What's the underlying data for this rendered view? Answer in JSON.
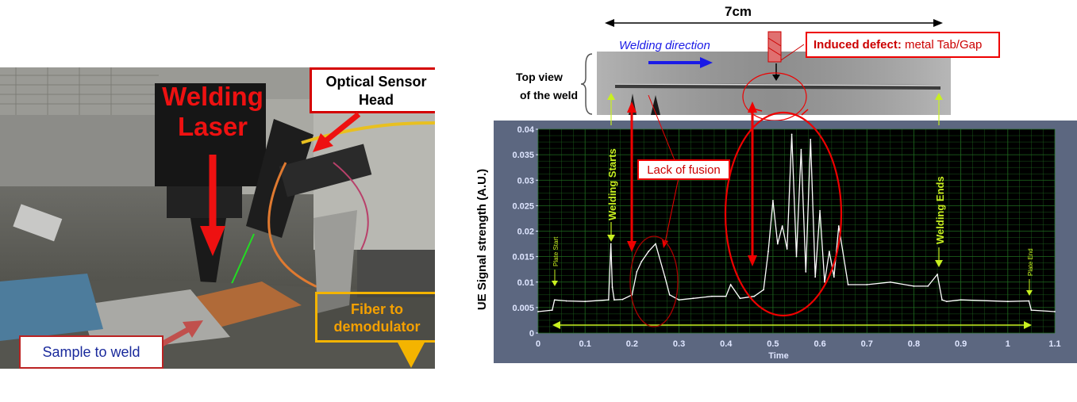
{
  "photo": {
    "welding_laser_label": "Welding Laser",
    "optical_sensor_label": "Optical Sensor Head",
    "fiber_label": "Fiber to demodulator",
    "sample_label": "Sample to weld"
  },
  "weld_view": {
    "width_label": "7cm",
    "direction_label": "Welding direction",
    "defect_label_bold": "Induced defect:",
    "defect_label_rest": "metal Tab/Gap",
    "top_view_label_line1": "Top view",
    "top_view_label_line2": "of the weld"
  },
  "annotations": {
    "lack_of_fusion": "Lack of fusion",
    "welding_starts": "Welding Starts",
    "welding_ends": "Welding Ends",
    "plate_start": "Plate Start",
    "plate_end": "Plate End"
  },
  "colors": {
    "plot_background": "#000000",
    "grid": "#1f6b1f",
    "frame": "#5c6780",
    "signal": "#ffffff",
    "annotation_red": "#e00000",
    "annotation_green": "#c8f020",
    "direction_arrow": "#1a1ae6"
  },
  "chart_data": {
    "type": "line",
    "xlabel": "Time",
    "ylabel": "UE Signal strength (A.U.)",
    "xlim": [
      0,
      1.1
    ],
    "ylim": [
      0,
      0.04
    ],
    "x_ticks": [
      "0",
      "0.1",
      "0.2",
      "0.3",
      "0.4",
      "0.5",
      "0.6",
      "0.7",
      "0.8",
      "0.9",
      "1",
      "1.1"
    ],
    "y_ticks": [
      "0",
      "0.005",
      "0.01",
      "0.015",
      "0.02",
      "0.025",
      "0.03",
      "0.035",
      "0.04"
    ],
    "grid": true,
    "series": [
      {
        "x": [
          0,
          0.03,
          0.035,
          0.06,
          0.1,
          0.15,
          0.155,
          0.158,
          0.162,
          0.18,
          0.2,
          0.21,
          0.22,
          0.235,
          0.25,
          0.27,
          0.28,
          0.3,
          0.33,
          0.37,
          0.4,
          0.41,
          0.43,
          0.46,
          0.48,
          0.49,
          0.5,
          0.51,
          0.52,
          0.53,
          0.54,
          0.55,
          0.56,
          0.57,
          0.58,
          0.59,
          0.6,
          0.61,
          0.62,
          0.63,
          0.64,
          0.66,
          0.7,
          0.75,
          0.8,
          0.83,
          0.85,
          0.86,
          0.87,
          0.9,
          1.0,
          1.045,
          1.05,
          1.1
        ],
        "y": [
          0.0042,
          0.0045,
          0.0065,
          0.0063,
          0.0062,
          0.0065,
          0.0175,
          0.009,
          0.0065,
          0.0066,
          0.0075,
          0.012,
          0.014,
          0.016,
          0.0175,
          0.011,
          0.0075,
          0.0065,
          0.0068,
          0.0072,
          0.0072,
          0.0095,
          0.0068,
          0.0072,
          0.0085,
          0.016,
          0.026,
          0.0175,
          0.021,
          0.0165,
          0.039,
          0.015,
          0.036,
          0.012,
          0.038,
          0.011,
          0.024,
          0.01,
          0.016,
          0.011,
          0.021,
          0.0095,
          0.0095,
          0.01,
          0.0092,
          0.0092,
          0.0115,
          0.0065,
          0.0062,
          0.0065,
          0.0062,
          0.0063,
          0.0045,
          0.0042
        ]
      }
    ]
  }
}
